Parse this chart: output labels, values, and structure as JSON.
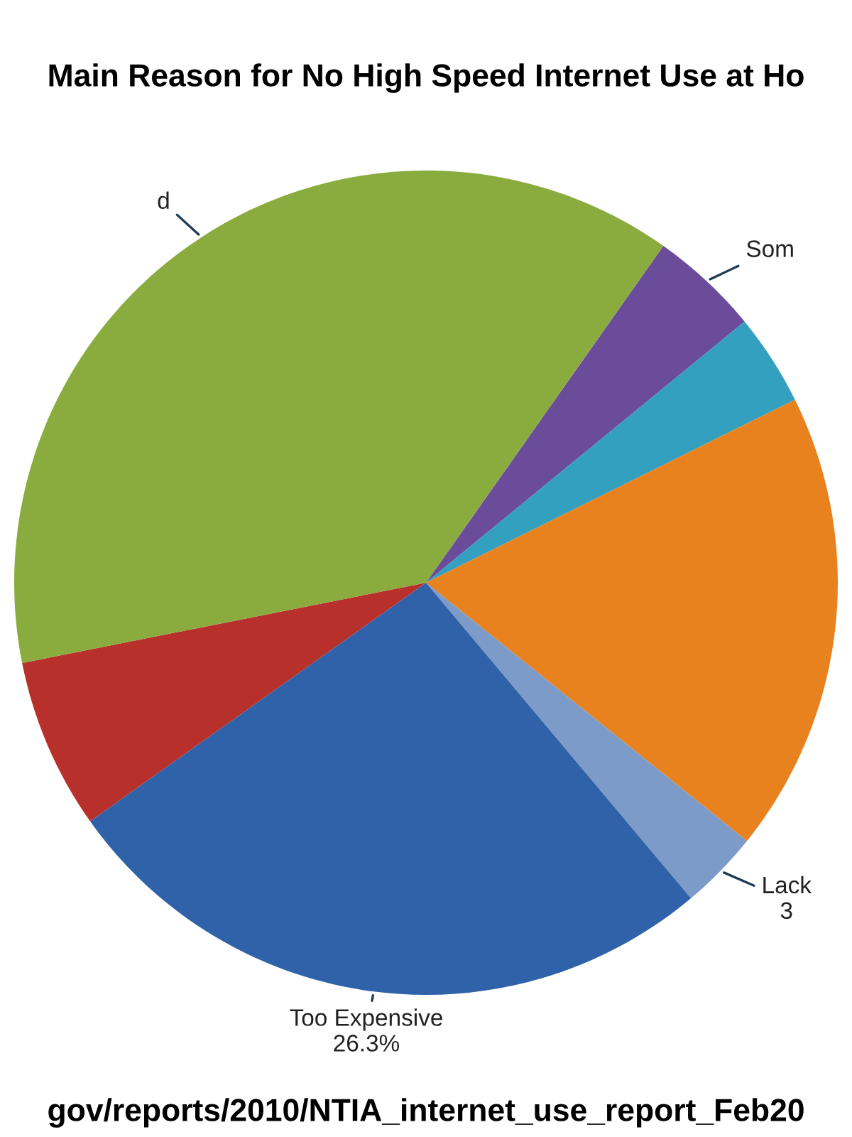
{
  "chart_data": {
    "type": "pie",
    "title": "Main Reason for No High Speed Internet Use at Ho",
    "categories": [
      "Som",
      null,
      null,
      "Lack",
      "Too Expensive",
      null,
      "d"
    ],
    "values": [
      4.3,
      3.6,
      18.1,
      3.1,
      26.3,
      6.7,
      37.9
    ],
    "value_labels": [
      null,
      null,
      null,
      "3",
      "26.3%",
      null,
      null
    ],
    "colors": [
      "#6b4c9a",
      "#33a0c0",
      "#e8821e",
      "#7d9bc8",
      "#2f62a8",
      "#b8302c",
      "#8aac3e"
    ],
    "annotations": [
      "gov/reports/2010/NTIA_internet_use_report_Feb20"
    ],
    "legend": false
  }
}
